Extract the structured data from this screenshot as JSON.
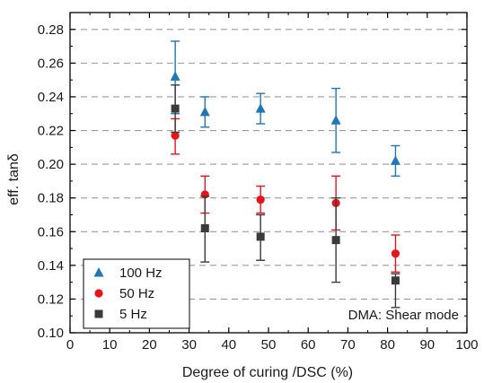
{
  "chart_data": {
    "type": "scatter",
    "xlabel": "Degree of curing /DSC (%)",
    "ylabel": "eff. tanδ",
    "xlim": [
      0,
      100
    ],
    "ylim": [
      0.1,
      0.29
    ],
    "xticks": [
      "0",
      "10",
      "20",
      "30",
      "40",
      "50",
      "60",
      "70",
      "80",
      "90",
      "100"
    ],
    "yticks": [
      "0.10",
      "0.12",
      "0.14",
      "0.16",
      "0.18",
      "0.20",
      "0.22",
      "0.24",
      "0.26",
      "0.28"
    ],
    "grid": "horizontal-dashed",
    "legend_position": "bottom-left",
    "annotation": "DMA: Shear mode",
    "series": [
      {
        "name": "100 Hz",
        "marker": "triangle",
        "color": "#1f77b4",
        "points": [
          {
            "x": 26.5,
            "y": 0.252,
            "err_low": 0.23,
            "err_high": 0.273
          },
          {
            "x": 34.0,
            "y": 0.231,
            "err_low": 0.222,
            "err_high": 0.24
          },
          {
            "x": 48.0,
            "y": 0.233,
            "err_low": 0.224,
            "err_high": 0.242
          },
          {
            "x": 67.0,
            "y": 0.226,
            "err_low": 0.207,
            "err_high": 0.245
          },
          {
            "x": 82.0,
            "y": 0.202,
            "err_low": 0.193,
            "err_high": 0.211
          }
        ]
      },
      {
        "name": "50 Hz",
        "marker": "circle",
        "color": "#e8141b",
        "points": [
          {
            "x": 26.5,
            "y": 0.217,
            "err_low": 0.206,
            "err_high": 0.227
          },
          {
            "x": 34.0,
            "y": 0.182,
            "err_low": 0.171,
            "err_high": 0.193
          },
          {
            "x": 48.0,
            "y": 0.179,
            "err_low": 0.171,
            "err_high": 0.187
          },
          {
            "x": 67.0,
            "y": 0.177,
            "err_low": 0.161,
            "err_high": 0.193
          },
          {
            "x": 82.0,
            "y": 0.147,
            "err_low": 0.136,
            "err_high": 0.158
          }
        ]
      },
      {
        "name": "5 Hz",
        "marker": "square",
        "color": "#3a3a3a",
        "points": [
          {
            "x": 26.5,
            "y": 0.233,
            "err_low": 0.219,
            "err_high": 0.247
          },
          {
            "x": 34.0,
            "y": 0.162,
            "err_low": 0.142,
            "err_high": 0.181
          },
          {
            "x": 48.0,
            "y": 0.157,
            "err_low": 0.143,
            "err_high": 0.17
          },
          {
            "x": 67.0,
            "y": 0.155,
            "err_low": 0.13,
            "err_high": 0.18
          },
          {
            "x": 82.0,
            "y": 0.131,
            "err_low": 0.115,
            "err_high": 0.135
          }
        ]
      }
    ]
  }
}
